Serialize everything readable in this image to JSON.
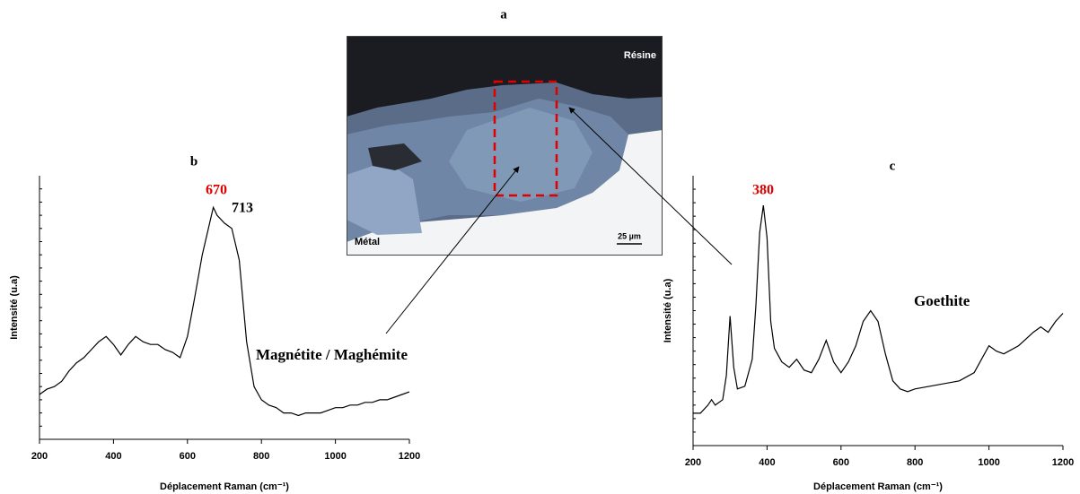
{
  "panel_a": {
    "label": "a",
    "texts": [
      "Résine",
      "Métal",
      "25 µm"
    ]
  },
  "annotations": [
    "Magnétite / Maghémite",
    "Goethite"
  ],
  "chart_data": [
    {
      "type": "line",
      "title": "b",
      "x_label": "Déplacement Raman (cm⁻¹)",
      "y_label": "Intensité (u.a)",
      "x": [
        200,
        220,
        240,
        260,
        280,
        300,
        320,
        340,
        360,
        380,
        400,
        420,
        440,
        460,
        480,
        500,
        520,
        540,
        560,
        580,
        600,
        620,
        640,
        660,
        670,
        680,
        700,
        720,
        740,
        760,
        780,
        800,
        820,
        840,
        860,
        880,
        900,
        920,
        940,
        960,
        980,
        1000,
        1020,
        1040,
        1060,
        1080,
        1100,
        1120,
        1140,
        1160,
        1180,
        1200
      ],
      "series": [
        {
          "color": "#000000",
          "values": [
            17,
            19,
            20,
            22,
            26,
            29,
            31,
            34,
            37,
            39,
            36,
            32,
            36,
            39,
            37,
            36,
            36,
            34,
            33,
            31,
            39,
            54,
            70,
            82,
            88,
            85,
            82,
            80,
            68,
            37,
            20,
            15,
            13,
            12,
            10,
            10,
            9,
            10,
            10,
            10,
            11,
            12,
            12,
            13,
            13,
            14,
            14,
            15,
            15,
            16,
            17,
            18
          ]
        }
      ],
      "xlim": [
        200,
        1200
      ],
      "xticks": [
        200,
        400,
        600,
        800,
        1000,
        1200
      ],
      "ylim": [
        0,
        100
      ],
      "peak_labels": [
        {
          "text": "670",
          "color": "#e00000"
        },
        {
          "text": "713",
          "color": "#000000"
        }
      ]
    },
    {
      "type": "line",
      "title": "c",
      "x_label": "Déplacement Raman (cm⁻¹)",
      "y_label": "Intensité (u.a)",
      "x": [
        200,
        220,
        240,
        250,
        260,
        280,
        290,
        300,
        310,
        320,
        340,
        360,
        370,
        380,
        390,
        400,
        410,
        420,
        440,
        460,
        480,
        500,
        520,
        540,
        560,
        580,
        600,
        620,
        640,
        660,
        680,
        700,
        720,
        740,
        760,
        780,
        800,
        840,
        880,
        920,
        960,
        1000,
        1020,
        1040,
        1080,
        1120,
        1140,
        1160,
        1180,
        1200
      ],
      "series": [
        {
          "color": "#000000",
          "values": [
            12,
            12,
            15,
            17,
            15,
            17,
            26,
            48,
            29,
            21,
            22,
            32,
            52,
            79,
            89,
            77,
            46,
            36,
            31,
            29,
            32,
            28,
            27,
            32,
            39,
            31,
            27,
            31,
            37,
            46,
            50,
            46,
            34,
            24,
            21,
            20,
            21,
            22,
            23,
            24,
            27,
            37,
            35,
            34,
            37,
            42,
            44,
            42,
            46,
            49
          ]
        }
      ],
      "xlim": [
        200,
        1200
      ],
      "xticks": [
        200,
        400,
        600,
        800,
        1000,
        1200
      ],
      "ylim": [
        0,
        100
      ],
      "peak_labels": [
        {
          "text": "380",
          "color": "#e00000"
        }
      ]
    }
  ]
}
